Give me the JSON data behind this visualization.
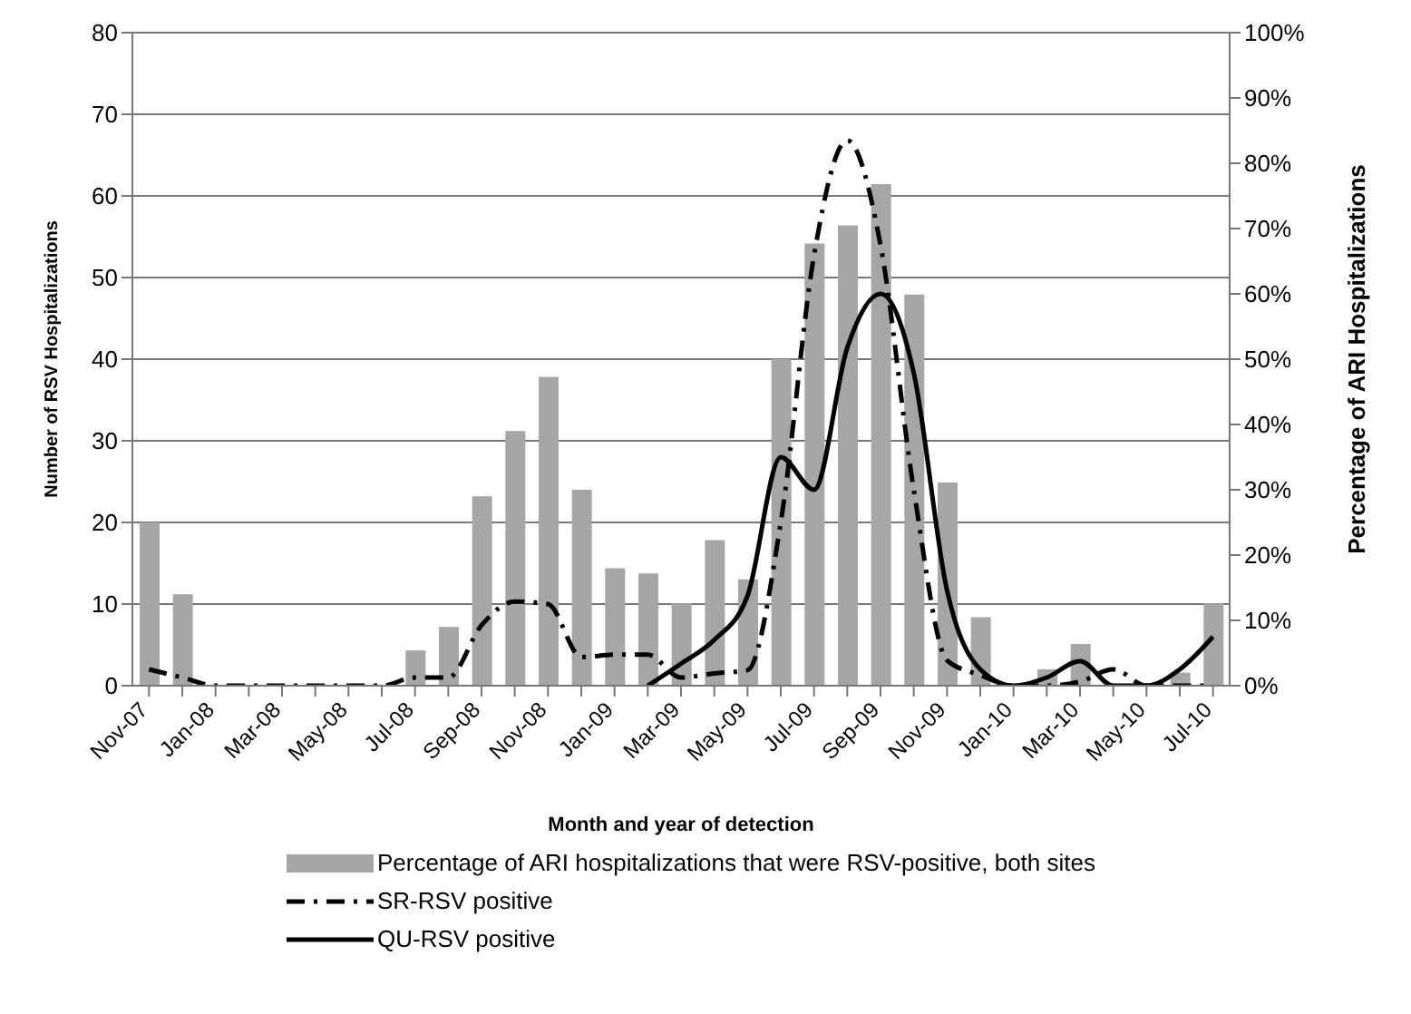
{
  "chart_data": {
    "type": "bar",
    "xlabel": "Month and year of detection",
    "ylabel": "Number of RSV Hospitalizations",
    "y2label": "Percentage of ARI Hospitalizations",
    "categories": [
      "Nov-07",
      null,
      "Jan-08",
      null,
      "Mar-08",
      null,
      "May-08",
      null,
      "Jul-08",
      null,
      "Sep-08",
      null,
      "Nov-08",
      null,
      "Jan-09",
      null,
      "Mar-09",
      null,
      "May-09",
      null,
      "Jul-09",
      null,
      "Sep-09",
      null,
      "Nov-09",
      null,
      "Jan-10",
      null,
      "Mar-10",
      null,
      "May-10",
      null,
      "Jul-10"
    ],
    "series": [
      {
        "name": "Percentage of ARI hospitalizations that were RSV-positive, both sites",
        "axis": "y2",
        "color": "#a6a6a6",
        "values": [
          25,
          14,
          0,
          0,
          0,
          0,
          0,
          0,
          5.4,
          9,
          29,
          39,
          47.3,
          30,
          18,
          17.2,
          12.6,
          22.3,
          16.3,
          50,
          67.7,
          70.5,
          76.8,
          59.9,
          31.1,
          10.5,
          0,
          2.5,
          6.4,
          0,
          0,
          2,
          12.6
        ]
      },
      {
        "name": "SR-RSV positive",
        "type": "line",
        "line_style": "dashed",
        "color": "#000000",
        "values": [
          2,
          1,
          0,
          0,
          0,
          0,
          0,
          0,
          1,
          1,
          7.4,
          10.3,
          10,
          3.5,
          3.8,
          3.8,
          1,
          1.5,
          1.9,
          20,
          52.7,
          66.8,
          54,
          24,
          3.1,
          1.3,
          0,
          0,
          0.5,
          2,
          0,
          0,
          0
        ]
      },
      {
        "name": "QU-RSV positive",
        "type": "line",
        "line_style": "solid",
        "color": "#000000",
        "values": [
          null,
          null,
          null,
          null,
          null,
          null,
          null,
          null,
          null,
          null,
          null,
          null,
          null,
          null,
          null,
          0,
          2.7,
          5.6,
          11,
          28,
          24,
          41.4,
          48,
          38.3,
          11.7,
          2,
          0,
          1,
          3,
          0,
          0,
          2,
          6
        ]
      }
    ],
    "ylim": [
      0,
      80
    ],
    "yticks": [
      0,
      10,
      20,
      30,
      40,
      50,
      60,
      70,
      80
    ],
    "y2lim": [
      0,
      100
    ],
    "y2ticks": [
      {
        "value": 0,
        "label": "0%"
      },
      {
        "value": 10,
        "label": "10%"
      },
      {
        "value": 20,
        "label": "20%"
      },
      {
        "value": 30,
        "label": "30%"
      },
      {
        "value": 40,
        "label": "40%"
      },
      {
        "value": 50,
        "label": "50%"
      },
      {
        "value": 60,
        "label": "60%"
      },
      {
        "value": 70,
        "label": "70%"
      },
      {
        "value": 80,
        "label": "80%"
      },
      {
        "value": 90,
        "label": "90%"
      },
      {
        "value": 100,
        "label": "100%"
      }
    ],
    "grid": "y",
    "legend": "bottom",
    "marker": "none"
  }
}
